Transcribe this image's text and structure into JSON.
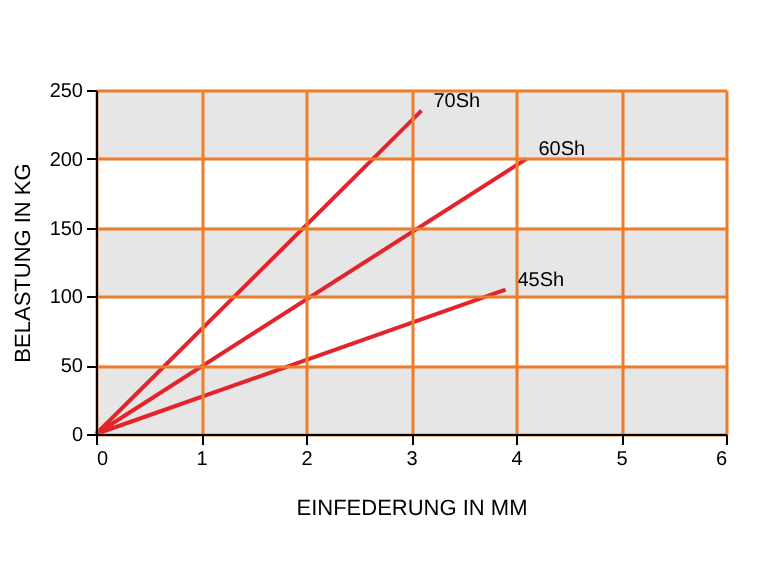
{
  "chart_data": {
    "type": "line",
    "xlabel": "EINFEDERUNG IN MM",
    "ylabel": "BELASTUNG IN KG",
    "xlim": [
      0,
      6
    ],
    "xticks": [
      0,
      1,
      2,
      3,
      4,
      5,
      6
    ],
    "ylim": [
      0,
      250
    ],
    "yticks": [
      0,
      50,
      100,
      150,
      200,
      250
    ],
    "grid": true,
    "marker": "none",
    "line_style": "solid",
    "bands": [
      {
        "axis": "y",
        "from": 200,
        "to": 250,
        "color": "#e6e6e6"
      },
      {
        "axis": "y",
        "from": 100,
        "to": 150,
        "color": "#e6e6e6"
      },
      {
        "axis": "y",
        "from": 0,
        "to": 50,
        "color": "#e6e6e6"
      }
    ],
    "series": [
      {
        "name": "70Sh",
        "color": "#e3242b",
        "x": [
          0,
          3.1
        ],
        "values": [
          0,
          235
        ]
      },
      {
        "name": "60Sh",
        "color": "#e3242b",
        "x": [
          0,
          4.1
        ],
        "values": [
          0,
          200
        ]
      },
      {
        "name": "45Sh",
        "color": "#e3242b",
        "x": [
          0,
          3.9
        ],
        "values": [
          0,
          105
        ]
      }
    ]
  }
}
